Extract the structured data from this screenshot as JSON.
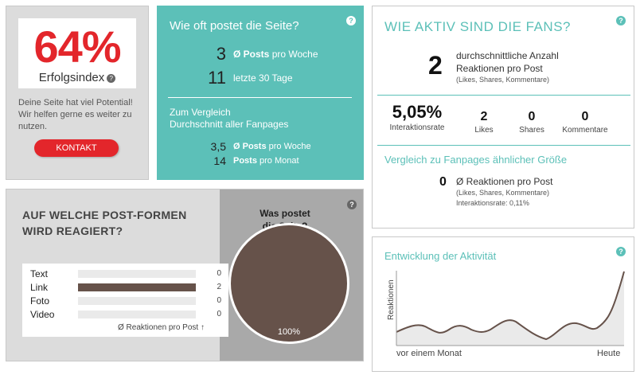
{
  "colors": {
    "brand_red": "#e3262b",
    "teal": "#5cc0b8",
    "panel_gray": "#dcdcdc",
    "bar_brown": "#66524a"
  },
  "score": {
    "value": "64%",
    "label": "Erfolgsindex",
    "description": "Deine Seite hat viel Potential! Wir helfen gerne es weiter zu nutzen.",
    "button_label": "KONTAKT"
  },
  "frequency": {
    "title": "Wie oft postet die Seite?",
    "rows": [
      {
        "value": "3",
        "unit_bold": "Ø Posts",
        "unit_rest": " pro Woche"
      },
      {
        "value": "11",
        "unit_bold": "",
        "unit_rest": "letzte 30 Tage"
      }
    ],
    "compare_line1": "Zum Vergleich",
    "compare_line2": "Durchschnitt aller Fanpages",
    "compare_rows": [
      {
        "value": "3,5",
        "unit_bold": "Ø Posts",
        "unit_rest": " pro Woche"
      },
      {
        "value": "14",
        "unit_bold": "Posts",
        "unit_rest": " pro Monat"
      }
    ]
  },
  "fans": {
    "title": "WIE AKTIV SIND DIE FANS?",
    "avg_value": "2",
    "avg_line1": "durchschnittliche Anzahl",
    "avg_line2": "Reaktionen pro Post",
    "avg_sub": "(Likes, Shares, Kommentare)",
    "stats": [
      {
        "value": "5,05%",
        "label": "Interaktionsrate"
      },
      {
        "value": "2",
        "label": "Likes"
      },
      {
        "value": "0",
        "label": "Shares"
      },
      {
        "value": "0",
        "label": "Kommentare"
      }
    ],
    "compare_title": "Vergleich zu Fanpages ähnlicher Größe",
    "compare_value": "0",
    "compare_line1": "Ø Reaktionen pro Post",
    "compare_line2": "(Likes, Shares, Kommentare)",
    "compare_line3": "Interaktionsrate: 0,11%"
  },
  "forms": {
    "title_line1": "AUF WELCHE POST-FORMEN",
    "title_line2": "WIRD REAGIERT?",
    "pie_title_line1": "Was postet",
    "pie_title_line2": "die Seite?",
    "items": [
      {
        "label": "Text",
        "count": "0",
        "fraction": 0
      },
      {
        "label": "Link",
        "count": "2",
        "fraction": 1
      },
      {
        "label": "Foto",
        "count": "0",
        "fraction": 0
      },
      {
        "label": "Video",
        "count": "0",
        "fraction": 0
      }
    ],
    "legend": "Ø Reaktionen pro Post ↑",
    "pie_label": "100%",
    "pie_fraction": 1
  },
  "activity": {
    "title": "Entwicklung der Aktivität",
    "ylabel": "Reaktionen",
    "x_start": "vor einem Monat",
    "x_end": "Heute"
  }
}
